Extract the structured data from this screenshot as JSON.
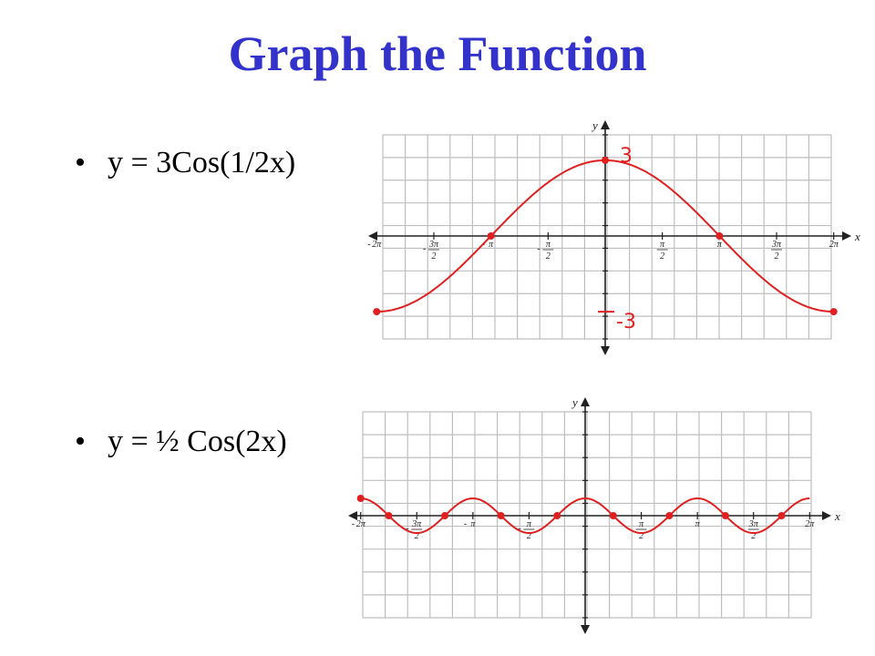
{
  "title": "Graph the Function",
  "bullets": [
    {
      "text": "y = 3Cos(1/2x)"
    },
    {
      "text": "y = ½ Cos(2x)"
    }
  ],
  "colors": {
    "title": "#3333cc",
    "curve": "#e02020",
    "grid": "#bfbfbf",
    "axis": "#222222"
  },
  "graphs": [
    {
      "function": "y = 3cos(x/2)",
      "axis_labels": {
        "x": "x",
        "y": "y"
      },
      "x_ticks": [
        {
          "x": -6.2832,
          "num": "2π",
          "den": "",
          "sign": "-"
        },
        {
          "x": -4.7124,
          "num": "3π",
          "den": "2",
          "sign": "-"
        },
        {
          "x": -3.1416,
          "num": "π",
          "den": "",
          "sign": "-"
        },
        {
          "x": -1.5708,
          "num": "π",
          "den": "2",
          "sign": "-"
        },
        {
          "x": 1.5708,
          "num": "π",
          "den": "2",
          "sign": ""
        },
        {
          "x": 3.1416,
          "num": "π",
          "den": "",
          "sign": ""
        },
        {
          "x": 4.7124,
          "num": "3π",
          "den": "2",
          "sign": ""
        },
        {
          "x": 6.2832,
          "num": "2π",
          "den": "",
          "sign": ""
        }
      ],
      "annotations": [
        "3",
        "-3"
      ],
      "marked_points": [
        [
          -6.2832,
          -3
        ],
        [
          -3.1416,
          0
        ],
        [
          0,
          3
        ],
        [
          3.1416,
          0
        ],
        [
          6.2832,
          -3
        ]
      ]
    },
    {
      "function": "y = 0.5cos(2x)",
      "axis_labels": {
        "x": "x",
        "y": "y"
      },
      "x_ticks": [
        {
          "x": -6.2832,
          "num": "2π",
          "den": "",
          "sign": "-"
        },
        {
          "x": -4.7124,
          "num": "3π",
          "den": "2",
          "sign": "-"
        },
        {
          "x": -3.1416,
          "num": "π",
          "den": "",
          "sign": "-"
        },
        {
          "x": -1.5708,
          "num": "π",
          "den": "2",
          "sign": "-"
        },
        {
          "x": 1.5708,
          "num": "π",
          "den": "2",
          "sign": ""
        },
        {
          "x": 3.1416,
          "num": "π",
          "den": "",
          "sign": ""
        },
        {
          "x": 4.7124,
          "num": "3π",
          "den": "2",
          "sign": ""
        },
        {
          "x": 6.2832,
          "num": "2π",
          "den": "",
          "sign": ""
        }
      ],
      "marked_points": [
        [
          -6.2832,
          0.5
        ],
        [
          -5.4978,
          0
        ],
        [
          -3.927,
          0
        ],
        [
          -2.3562,
          0
        ],
        [
          -0.7854,
          0
        ],
        [
          0.7854,
          0
        ],
        [
          2.3562,
          0
        ],
        [
          3.927,
          0
        ],
        [
          5.4978,
          0
        ]
      ]
    }
  ]
}
